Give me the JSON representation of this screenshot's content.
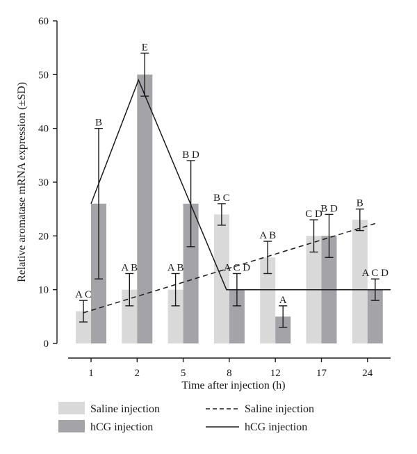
{
  "chart_data": {
    "type": "bar",
    "xlabel": "Time after injection (h)",
    "ylabel": "Relative aromatase mRNA expression (±SD)",
    "ylim": [
      0,
      60
    ],
    "yticks": [
      0,
      10,
      20,
      30,
      40,
      50,
      60
    ],
    "categories": [
      "1",
      "2",
      "5",
      "8",
      "12",
      "17",
      "24"
    ],
    "series": [
      {
        "name": "Saline injection",
        "color": "#d9d9d9",
        "values": [
          6,
          10,
          10,
          24,
          16,
          20,
          23
        ],
        "sd": [
          2,
          3,
          3,
          2,
          3,
          3,
          2
        ],
        "labels": [
          "A C",
          "A B",
          "A B",
          "B C",
          "A B",
          "C D",
          "B"
        ]
      },
      {
        "name": "hCG injection",
        "color": "#a3a3a8",
        "values": [
          26,
          50,
          26,
          10,
          5,
          20,
          10
        ],
        "sd": [
          14,
          4,
          8,
          3,
          2,
          4,
          2
        ],
        "labels": [
          "B",
          "E",
          "B D",
          "A C D",
          "A",
          "B D",
          "A C D"
        ]
      }
    ],
    "lines": [
      {
        "name": "Saline injection",
        "style": "dashed",
        "points": [
          [
            1,
            5.7
          ],
          [
            24,
            22.3
          ]
        ]
      },
      {
        "name": "hCG injection",
        "style": "solid",
        "points": [
          [
            1,
            26
          ],
          [
            2,
            49
          ],
          [
            8,
            10
          ],
          [
            24,
            10
          ]
        ]
      }
    ],
    "grid": false,
    "legend": "bottom"
  }
}
